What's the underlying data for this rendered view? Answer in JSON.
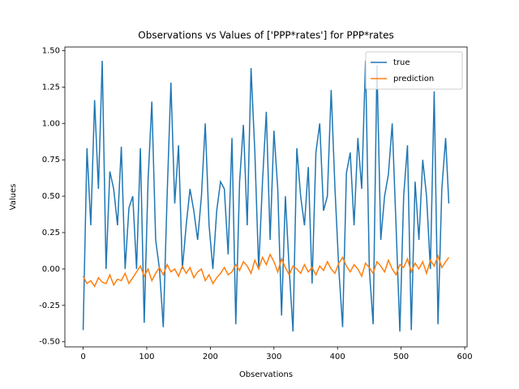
{
  "chart_data": {
    "type": "line",
    "title": "Observations vs Values of ['PPP*rates'] for PPP*rates",
    "x_label": "Observations",
    "y_label": "Values",
    "x": [
      0,
      6,
      12,
      18,
      24,
      30,
      36,
      42,
      48,
      54,
      60,
      66,
      72,
      78,
      84,
      90,
      96,
      102,
      108,
      114,
      120,
      126,
      132,
      138,
      144,
      150,
      156,
      162,
      168,
      174,
      180,
      186,
      192,
      198,
      204,
      210,
      216,
      222,
      228,
      234,
      240,
      246,
      252,
      258,
      264,
      270,
      276,
      282,
      288,
      294,
      300,
      306,
      312,
      318,
      324,
      330,
      336,
      342,
      348,
      354,
      360,
      366,
      372,
      378,
      384,
      390,
      396,
      402,
      408,
      414,
      420,
      426,
      432,
      438,
      444,
      450,
      456,
      462,
      468,
      474,
      480,
      486,
      492,
      498,
      504,
      510,
      516,
      522,
      528,
      534,
      540,
      546,
      552,
      558,
      564,
      570,
      575
    ],
    "series": [
      {
        "name": "true",
        "color": "#1f77b4",
        "values": [
          -0.42,
          0.83,
          0.3,
          1.16,
          0.55,
          1.43,
          0.0,
          0.67,
          0.55,
          0.3,
          0.84,
          0.0,
          0.42,
          0.5,
          0.0,
          0.83,
          -0.37,
          0.6,
          1.15,
          0.2,
          0.0,
          -0.4,
          0.5,
          1.28,
          0.45,
          0.85,
          0.0,
          0.3,
          0.55,
          0.4,
          0.2,
          0.5,
          1.0,
          0.3,
          0.0,
          0.4,
          0.6,
          0.55,
          0.1,
          0.9,
          -0.38,
          0.6,
          0.99,
          0.3,
          1.38,
          0.8,
          0.0,
          0.6,
          1.08,
          0.2,
          0.95,
          0.55,
          -0.32,
          0.5,
          0.0,
          -0.43,
          0.83,
          0.5,
          0.3,
          0.7,
          -0.1,
          0.8,
          1.0,
          0.4,
          0.5,
          1.23,
          0.55,
          0.0,
          -0.4,
          0.66,
          0.8,
          0.3,
          0.9,
          0.55,
          1.43,
          0.0,
          -0.38,
          1.4,
          0.2,
          0.5,
          0.65,
          1.0,
          0.3,
          -0.43,
          0.5,
          0.85,
          -0.42,
          0.6,
          0.2,
          0.75,
          0.5,
          0.0,
          1.22,
          -0.38,
          0.55,
          0.9,
          0.45
        ]
      },
      {
        "name": "prediction",
        "color": "#ff7f0e",
        "values": [
          -0.05,
          -0.1,
          -0.08,
          -0.12,
          -0.06,
          -0.09,
          -0.1,
          -0.04,
          -0.11,
          -0.07,
          -0.08,
          -0.03,
          -0.1,
          -0.06,
          -0.02,
          0.02,
          -0.05,
          0.0,
          -0.08,
          -0.03,
          0.01,
          -0.04,
          0.03,
          -0.02,
          0.0,
          -0.05,
          0.02,
          -0.03,
          0.01,
          -0.06,
          -0.02,
          0.0,
          -0.08,
          -0.04,
          -0.1,
          -0.06,
          -0.03,
          0.01,
          -0.04,
          -0.02,
          0.03,
          -0.01,
          0.05,
          0.02,
          -0.03,
          0.06,
          0.0,
          0.08,
          0.03,
          0.1,
          0.05,
          -0.02,
          0.07,
          0.01,
          -0.04,
          0.02,
          0.0,
          -0.03,
          0.03,
          -0.02,
          0.01,
          -0.04,
          0.02,
          -0.01,
          0.05,
          0.0,
          -0.03,
          0.04,
          0.08,
          0.02,
          -0.02,
          0.03,
          0.0,
          -0.05,
          0.04,
          0.01,
          -0.03,
          0.05,
          0.02,
          -0.02,
          0.06,
          0.0,
          -0.04,
          0.03,
          0.01,
          0.07,
          -0.02,
          0.04,
          0.0,
          0.05,
          -0.03,
          0.06,
          0.02,
          0.09,
          0.01,
          0.05,
          0.08
        ]
      }
    ],
    "xlim": [
      -28.75,
      603.75
    ],
    "ylim": [
      -0.535,
      1.525
    ],
    "xticks": [
      0,
      100,
      200,
      300,
      400,
      500,
      600
    ],
    "yticks": [
      {
        "value": -0.5,
        "label": "-0.50"
      },
      {
        "value": -0.25,
        "label": "-0.25"
      },
      {
        "value": 0,
        "label": "0.00"
      },
      {
        "value": 0.25,
        "label": "0.25"
      },
      {
        "value": 0.5,
        "label": "0.50"
      },
      {
        "value": 0.75,
        "label": "0.75"
      },
      {
        "value": 1,
        "label": "1.00"
      },
      {
        "value": 1.25,
        "label": "1.25"
      },
      {
        "value": 1.5,
        "label": "1.50"
      }
    ],
    "legend": "upper right"
  }
}
